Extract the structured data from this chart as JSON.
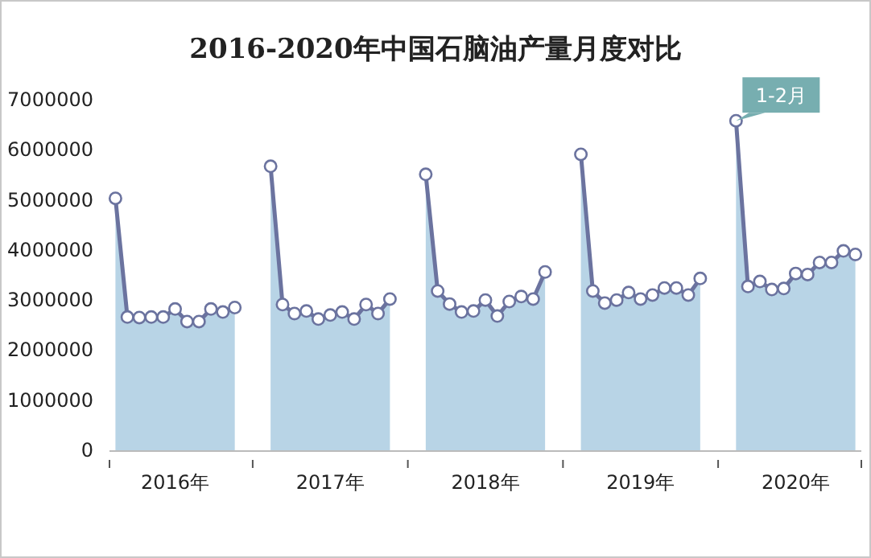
{
  "chart_data": {
    "type": "area",
    "title": "2016-2020年中国石脑油产量月度对比",
    "categories": [
      null,
      null,
      null,
      null,
      null,
      "2016年",
      null,
      null,
      null,
      null,
      null,
      null,
      null,
      null,
      null,
      null,
      null,
      null,
      "2017年",
      null,
      null,
      null,
      null,
      null,
      null,
      null,
      null,
      null,
      null,
      null,
      null,
      "2018年",
      null,
      null,
      null,
      null,
      null,
      null,
      null,
      null,
      null,
      null,
      null,
      null,
      "2019年",
      null,
      null,
      null,
      null,
      null,
      null,
      null,
      null,
      null,
      null,
      null,
      null,
      "2020年",
      null,
      null,
      null,
      null,
      null
    ],
    "series": [
      {
        "color": "#6b739f",
        "values": [
          5030000,
          2660000,
          2650000,
          2660000,
          2660000,
          2820000,
          2570000,
          2570000,
          2820000,
          2760000,
          2850000,
          null,
          null,
          5670000,
          2910000,
          2730000,
          2780000,
          2620000,
          2700000,
          2760000,
          2620000,
          2910000,
          2730000,
          3020000,
          null,
          null,
          5510000,
          3180000,
          2920000,
          2760000,
          2780000,
          3000000,
          2680000,
          2970000,
          3070000,
          3020000,
          3560000,
          null,
          null,
          5910000,
          3180000,
          2940000,
          3000000,
          3150000,
          3020000,
          3100000,
          3240000,
          3240000,
          3100000,
          3430000,
          null,
          null,
          6580000,
          3270000,
          3370000,
          3210000,
          3230000,
          3530000,
          3510000,
          3750000,
          3750000,
          3980000,
          3910000
        ]
      }
    ],
    "ylim": [
      0,
      7000000
    ],
    "yticks": [
      0,
      1000000,
      2000000,
      3000000,
      4000000,
      5000000,
      6000000,
      7000000
    ],
    "marker": "circle",
    "grid": false,
    "annotations": [
      "1-2月"
    ]
  }
}
